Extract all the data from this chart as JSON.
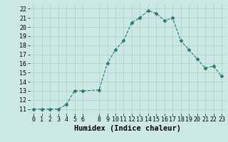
{
  "x": [
    0,
    1,
    2,
    3,
    4,
    5,
    6,
    8,
    9,
    10,
    11,
    12,
    13,
    14,
    15,
    16,
    17,
    18,
    19,
    20,
    21,
    22,
    23
  ],
  "y": [
    11,
    11,
    11,
    11,
    11.5,
    13,
    13,
    13.1,
    16,
    17.5,
    18.5,
    20.5,
    21,
    21.8,
    21.5,
    20.7,
    21,
    18.5,
    17.5,
    16.5,
    15.5,
    15.7,
    14.6
  ],
  "line_color": "#2a7a6a",
  "marker": "D",
  "marker_size": 2.5,
  "bg_color": "#cce8e4",
  "grid_color": "#aacfcb",
  "xlabel": "Humidex (Indice chaleur)",
  "xlim": [
    -0.5,
    23.5
  ],
  "ylim": [
    10.5,
    22.5
  ],
  "yticks": [
    11,
    12,
    13,
    14,
    15,
    16,
    17,
    18,
    19,
    20,
    21,
    22
  ],
  "xticks": [
    0,
    1,
    2,
    3,
    4,
    5,
    6,
    8,
    9,
    10,
    11,
    12,
    13,
    14,
    15,
    16,
    17,
    18,
    19,
    20,
    21,
    22,
    23
  ],
  "tick_fontsize": 6.0,
  "xlabel_fontsize": 7.5
}
